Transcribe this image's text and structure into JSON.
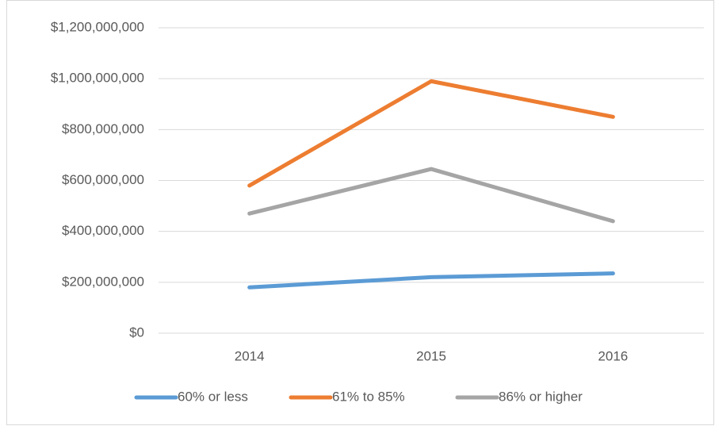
{
  "chart_data": {
    "type": "line",
    "categories": [
      "2014",
      "2015",
      "2016"
    ],
    "series": [
      {
        "name": "60% or less",
        "color": "#5b9bd5",
        "values": [
          180000000,
          220000000,
          235000000
        ]
      },
      {
        "name": "61% to 85%",
        "color": "#ed7d31",
        "values": [
          580000000,
          990000000,
          850000000
        ]
      },
      {
        "name": "86% or higher",
        "color": "#a5a5a5",
        "values": [
          470000000,
          645000000,
          440000000
        ]
      }
    ],
    "ylim": [
      0,
      1200000000
    ],
    "yticks": [
      {
        "value": 0,
        "label": "$0"
      },
      {
        "value": 200000000,
        "label": "$200,000,000"
      },
      {
        "value": 400000000,
        "label": "$400,000,000"
      },
      {
        "value": 600000000,
        "label": "$600,000,000"
      },
      {
        "value": 800000000,
        "label": "$800,000,000"
      },
      {
        "value": 1000000000,
        "label": "$1,000,000,000"
      },
      {
        "value": 1200000000,
        "label": "$1,200,000,000"
      }
    ],
    "grid": true,
    "legend": "bottom"
  }
}
